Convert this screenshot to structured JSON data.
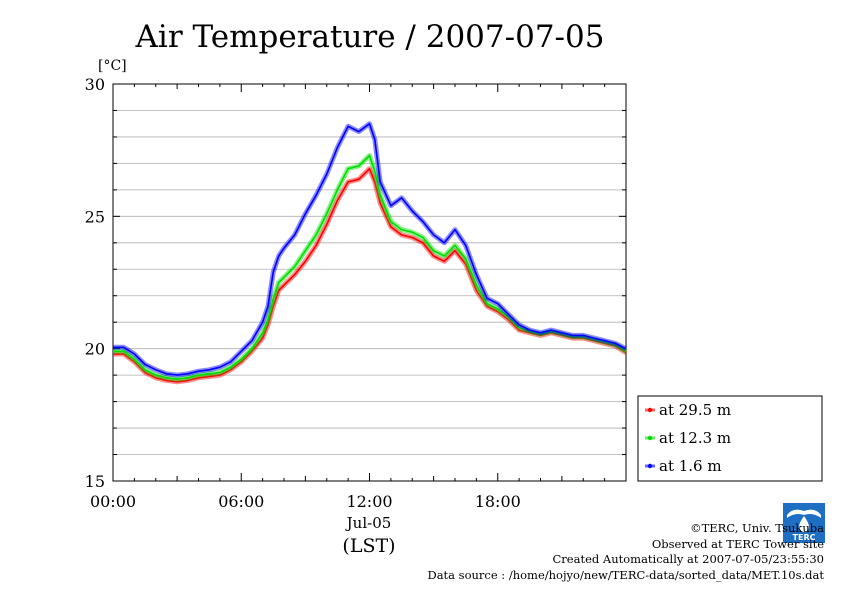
{
  "chart_data": {
    "type": "line",
    "title": "Air Temperature / 2007-07-05",
    "y_unit_label": "[°C]",
    "ylim": [
      15,
      30
    ],
    "y_ticks": [
      15,
      20,
      25,
      30
    ],
    "y_tick_labels": [
      "15",
      "20",
      "25",
      "30"
    ],
    "xlim": [
      0,
      24
    ],
    "x_ticks": [
      0,
      6,
      12,
      18
    ],
    "x_tick_labels": [
      "00:00",
      "06:00",
      "12:00",
      "18:00"
    ],
    "date_label": "Jul-05",
    "xlabel": "(LST)",
    "grid": true,
    "legend_position": "right",
    "x_hours": [
      0,
      0.5,
      1,
      1.5,
      2,
      2.5,
      3,
      3.5,
      4,
      4.5,
      5,
      5.5,
      6,
      6.5,
      7,
      7.25,
      7.5,
      7.75,
      8,
      8.5,
      9,
      9.5,
      10,
      10.5,
      11,
      11.5,
      12,
      12.25,
      12.5,
      13,
      13.5,
      14,
      14.5,
      15,
      15.5,
      16,
      16.5,
      17,
      17.5,
      18,
      18.5,
      19,
      19.5,
      20,
      20.5,
      21,
      21.5,
      22,
      22.5,
      23,
      23.5,
      24
    ],
    "series": [
      {
        "name": "at 29.5 m",
        "color": "#ff0000",
        "values": [
          19.8,
          19.8,
          19.5,
          19.1,
          18.9,
          18.8,
          18.75,
          18.8,
          18.9,
          18.95,
          19.0,
          19.2,
          19.5,
          19.9,
          20.4,
          20.9,
          21.6,
          22.2,
          22.4,
          22.8,
          23.3,
          23.9,
          24.7,
          25.6,
          26.3,
          26.4,
          26.8,
          26.3,
          25.5,
          24.6,
          24.3,
          24.2,
          24.0,
          23.5,
          23.3,
          23.7,
          23.2,
          22.2,
          21.6,
          21.4,
          21.1,
          20.7,
          20.6,
          20.5,
          20.6,
          20.5,
          20.4,
          20.4,
          20.3,
          20.2,
          20.1,
          19.85
        ]
      },
      {
        "name": "at 12.3 m",
        "color": "#00dd00",
        "values": [
          19.9,
          19.9,
          19.6,
          19.2,
          19.0,
          18.9,
          18.85,
          18.9,
          19.0,
          19.05,
          19.1,
          19.3,
          19.6,
          20.0,
          20.6,
          21.1,
          21.9,
          22.5,
          22.7,
          23.1,
          23.7,
          24.3,
          25.1,
          26.0,
          26.8,
          26.9,
          27.3,
          26.7,
          25.8,
          24.8,
          24.5,
          24.4,
          24.2,
          23.7,
          23.5,
          23.9,
          23.4,
          22.4,
          21.7,
          21.5,
          21.2,
          20.8,
          20.65,
          20.55,
          20.65,
          20.55,
          20.45,
          20.45,
          20.35,
          20.25,
          20.15,
          19.9
        ]
      },
      {
        "name": "at 1.6 m",
        "color": "#0000ff",
        "values": [
          20.05,
          20.05,
          19.8,
          19.4,
          19.2,
          19.05,
          19.0,
          19.05,
          19.15,
          19.2,
          19.3,
          19.5,
          19.9,
          20.3,
          21.0,
          21.6,
          22.9,
          23.5,
          23.8,
          24.3,
          25.1,
          25.8,
          26.6,
          27.6,
          28.4,
          28.2,
          28.5,
          27.9,
          26.3,
          25.4,
          25.7,
          25.2,
          24.8,
          24.3,
          24.0,
          24.5,
          23.9,
          22.8,
          21.9,
          21.7,
          21.3,
          20.9,
          20.7,
          20.6,
          20.7,
          20.6,
          20.5,
          20.5,
          20.4,
          20.3,
          20.2,
          20.0
        ]
      }
    ]
  },
  "credits": {
    "copyright": "©TERC, Univ. Tsukuba",
    "observed": "Observed at TERC Tower site",
    "created": "Created Automatically at 2007-07-05/23:55:30",
    "source": "Data source : /home/hojyo/new/TERC-data/sorted_data/MET.10s.dat"
  },
  "logo": {
    "name": "terc-logo-icon",
    "text": "TERC",
    "color": "#1d6fc4"
  }
}
